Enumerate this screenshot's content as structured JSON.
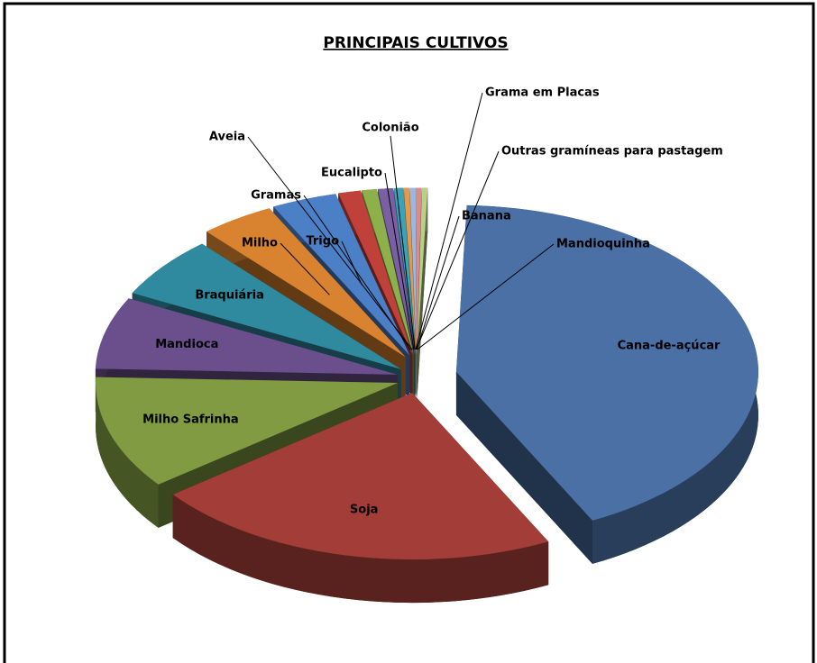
{
  "chart_data": {
    "type": "pie3d",
    "title": "PRINCIPAIS CULTIVOS",
    "categories": [
      "Cana-de-açúcar",
      "Soja",
      "Milho Safrinha",
      "Mandioca",
      "Braquiária",
      "Milho",
      "Trigo",
      "Gramas",
      "Aveia",
      "Eucalipto",
      "Colonião",
      "Grama em Placas",
      "Outras gramíneas para pastagem",
      "Banana",
      "Mandioquinha"
    ],
    "values": [
      42,
      22,
      11,
      7,
      6,
      4,
      3.5,
      1.2,
      0.8,
      0.8,
      0.5,
      0.3,
      0.3,
      0.3,
      0.3
    ],
    "colors": [
      "#4a70a6",
      "#a33d38",
      "#809b42",
      "#6a4f8c",
      "#2f8aa0",
      "#d9822f",
      "#4b7fc6",
      "#c0403a",
      "#8db04b",
      "#7a60a3",
      "#3aa3ba",
      "#e49a4c",
      "#9db8e0",
      "#d98d8a",
      "#b9cf8a"
    ]
  }
}
